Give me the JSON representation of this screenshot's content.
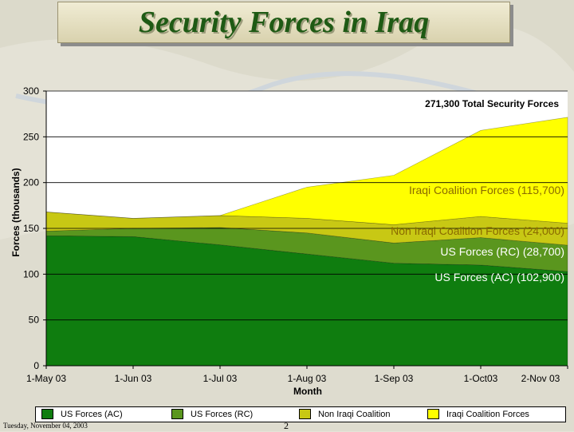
{
  "page": {
    "title": "Security Forces in Iraq",
    "footer_date": "Tuesday, November 04, 2003",
    "page_number": "2",
    "colors": {
      "title": "#1e5a14",
      "us_ac": "#0f7d0f",
      "us_rc": "#5a961e",
      "non_iraqi": "#c8c814",
      "iraqi": "#ffff00"
    }
  },
  "chart_data": {
    "type": "area",
    "stacked": true,
    "x": [
      "1-May 03",
      "1-Jun 03",
      "1-Jul 03",
      "1-Aug 03",
      "1-Sep 03",
      "1-Oct03",
      "2-Nov 03"
    ],
    "xlabel": "Month",
    "ylabel": "Forces (thousands)",
    "ylim": [
      0,
      300
    ],
    "yticks": [
      0,
      50,
      100,
      150,
      200,
      250,
      300
    ],
    "grid": true,
    "legend_position": "bottom",
    "series": [
      {
        "name": "US Forces (AC)",
        "color": "#0f7d0f",
        "values": [
          142,
          141,
          132,
          122,
          112,
          110,
          102.9
        ]
      },
      {
        "name": "US Forces (RC)",
        "color": "#5a961e",
        "values": [
          5,
          9,
          19,
          23,
          22,
          30,
          28.7
        ]
      },
      {
        "name": "Non Iraqi Coalition",
        "color": "#c8c814",
        "values": [
          21,
          11,
          13,
          16,
          20,
          23,
          24
        ]
      },
      {
        "name": "Iraqi Coalition  Forces",
        "color": "#ffff00",
        "values": [
          0,
          0,
          0,
          34,
          54,
          94,
          115.7
        ]
      }
    ],
    "annotations": {
      "total": "271,300 Total Security Forces",
      "iraqi": "Iraqi Coalition Forces (115,700)",
      "non_iraqi": "Non Iraqi Coalition Forces (24,000)",
      "us_rc": "US Forces (RC) (28,700)",
      "us_ac": "US Forces (AC) (102,900)"
    }
  }
}
